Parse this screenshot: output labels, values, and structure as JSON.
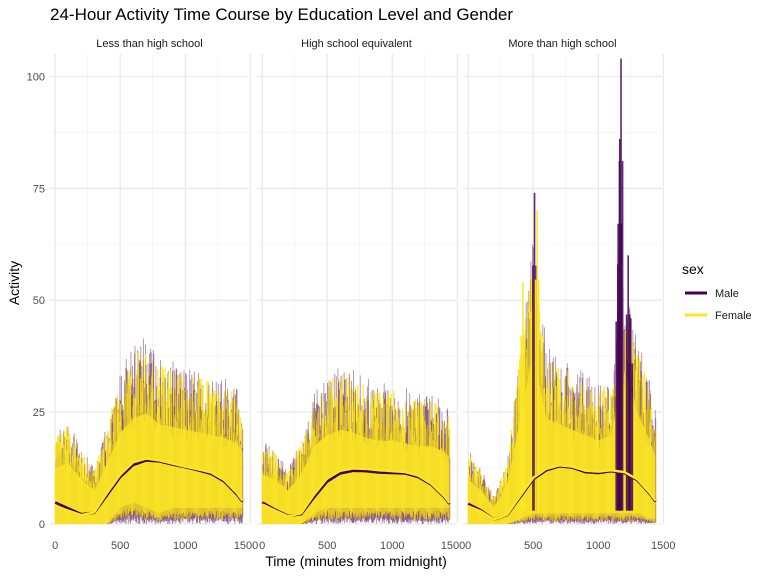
{
  "chart_data": {
    "type": "line",
    "title": "24-Hour Activity Time Course by Education Level and Gender",
    "xlabel": "Time (minutes from midnight)",
    "ylabel": "Activity",
    "xlim": [
      0,
      1440
    ],
    "ylim": [
      0,
      105
    ],
    "x_ticks": [
      0,
      500,
      1000,
      1500
    ],
    "x_tick_labels": [
      "0",
      "500",
      "1000",
      "1500"
    ],
    "y_ticks": [
      0,
      25,
      50,
      75,
      100
    ],
    "y_tick_labels": [
      "0",
      "25",
      "50",
      "75",
      "100"
    ],
    "grid": true,
    "legend": {
      "title": "sex",
      "position": "right",
      "entries": [
        "Male",
        "Female"
      ]
    },
    "colors": {
      "Male": "#440154",
      "Female": "#FDE725"
    },
    "panels": [
      {
        "label": "Less than high school",
        "raw_band": {
          "x": [
            0,
            100,
            200,
            300,
            400,
            500,
            600,
            700,
            800,
            900,
            1000,
            1100,
            1200,
            1300,
            1400,
            1440
          ],
          "upper": [
            20,
            22,
            16,
            12,
            22,
            33,
            38,
            40,
            36,
            35,
            34,
            33,
            32,
            31,
            29,
            26
          ],
          "lower": [
            0,
            0,
            0,
            0,
            0,
            3,
            4,
            3,
            2,
            3,
            3,
            3,
            3,
            3,
            3,
            3
          ]
        },
        "series": [
          {
            "name": "Male",
            "x": [
              0,
              100,
              200,
              300,
              400,
              500,
              600,
              700,
              800,
              900,
              1000,
              1100,
              1200,
              1300,
              1400,
              1440
            ],
            "y": [
              4.8,
              3.5,
              2.2,
              2.5,
              6.5,
              10.5,
              13.2,
              14.2,
              14.0,
              13.3,
              12.7,
              12.0,
              11.2,
              9.5,
              6.5,
              5.0
            ]
          },
          {
            "name": "Female",
            "x": [
              0,
              100,
              200,
              300,
              400,
              500,
              600,
              700,
              800,
              900,
              1000,
              1100,
              1200,
              1300,
              1400,
              1440
            ],
            "y": [
              4.0,
              3.0,
              2.0,
              2.6,
              7.0,
              11.0,
              13.8,
              14.6,
              14.2,
              13.5,
              12.8,
              12.2,
              11.5,
              9.8,
              6.8,
              5.2
            ]
          }
        ]
      },
      {
        "label": "High school equivalent",
        "raw_band": {
          "x": [
            0,
            100,
            200,
            300,
            400,
            500,
            600,
            700,
            800,
            900,
            1000,
            1100,
            1200,
            1300,
            1400,
            1440
          ],
          "upper": [
            18,
            16,
            12,
            18,
            28,
            32,
            34,
            33,
            31,
            30,
            30,
            29,
            28,
            28,
            26,
            24
          ],
          "lower": [
            0,
            0,
            0,
            0,
            2,
            3,
            3,
            3,
            3,
            3,
            3,
            3,
            3,
            3,
            3,
            3
          ]
        },
        "series": [
          {
            "name": "Male",
            "x": [
              0,
              100,
              200,
              300,
              400,
              500,
              600,
              700,
              800,
              900,
              1000,
              1100,
              1200,
              1300,
              1400,
              1440
            ],
            "y": [
              4.8,
              3.2,
              1.8,
              2.2,
              6.0,
              9.5,
              11.3,
              11.9,
              11.8,
              11.5,
              11.4,
              11.3,
              10.5,
              8.8,
              6.0,
              4.5
            ]
          },
          {
            "name": "Female",
            "x": [
              0,
              100,
              200,
              300,
              400,
              500,
              600,
              700,
              800,
              900,
              1000,
              1100,
              1200,
              1300,
              1400,
              1440
            ],
            "y": [
              4.4,
              3.0,
              1.7,
              2.4,
              6.6,
              10.2,
              11.9,
              12.4,
              12.3,
              12.0,
              11.8,
              11.6,
              10.8,
              9.0,
              6.2,
              4.7
            ]
          }
        ]
      },
      {
        "label": "More than high school",
        "raw_band": {
          "x": [
            0,
            100,
            200,
            300,
            400,
            500,
            600,
            700,
            800,
            900,
            1000,
            1100,
            1200,
            1300,
            1400,
            1440
          ],
          "upper": [
            16,
            12,
            6,
            14,
            38,
            62,
            38,
            36,
            34,
            32,
            30,
            32,
            55,
            40,
            30,
            24
          ],
          "lower": [
            0,
            0,
            0,
            0,
            1,
            2,
            2,
            2,
            2,
            2,
            2,
            2,
            2,
            2,
            1,
            1
          ]
        },
        "spikes": [
          {
            "x": 510,
            "y": 74,
            "series": "Male"
          },
          {
            "x": 530,
            "y": 70,
            "series": "Female"
          },
          {
            "x": 420,
            "y": 54,
            "series": "Female"
          },
          {
            "x": 1175,
            "y": 104,
            "series": "Male"
          },
          {
            "x": 1165,
            "y": 86,
            "series": "Male"
          },
          {
            "x": 1150,
            "y": 58,
            "series": "Male"
          },
          {
            "x": 1230,
            "y": 60,
            "series": "Male"
          },
          {
            "x": 1250,
            "y": 46,
            "series": "Male"
          }
        ],
        "series": [
          {
            "name": "Male",
            "x": [
              0,
              100,
              200,
              300,
              400,
              500,
              600,
              700,
              800,
              900,
              1000,
              1100,
              1200,
              1300,
              1400,
              1440
            ],
            "y": [
              4.5,
              3.0,
              1.0,
              2.0,
              6.0,
              10.0,
              12.0,
              12.9,
              12.6,
              11.6,
              11.4,
              11.8,
              11.4,
              9.8,
              6.6,
              5.0
            ]
          },
          {
            "name": "Female",
            "x": [
              0,
              100,
              200,
              300,
              400,
              500,
              600,
              700,
              800,
              900,
              1000,
              1100,
              1200,
              1300,
              1400,
              1440
            ],
            "y": [
              4.0,
              2.8,
              1.0,
              2.1,
              6.3,
              10.3,
              12.3,
              13.1,
              12.8,
              11.9,
              11.7,
              12.0,
              11.6,
              10.0,
              6.8,
              5.2
            ]
          }
        ]
      }
    ]
  }
}
